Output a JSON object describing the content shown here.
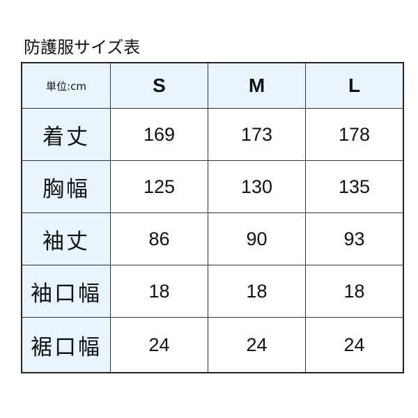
{
  "title": "防護服サイズ表",
  "table": {
    "unit_label": "単位:cm",
    "sizes": [
      "S",
      "M",
      "L"
    ],
    "rows": [
      {
        "label": "着丈",
        "values": [
          "169",
          "173",
          "178"
        ]
      },
      {
        "label": "胸幅",
        "values": [
          "125",
          "130",
          "135"
        ]
      },
      {
        "label": "袖丈",
        "values": [
          "86",
          "90",
          "93"
        ]
      },
      {
        "label": "袖口幅",
        "values": [
          "18",
          "18",
          "18"
        ]
      },
      {
        "label": "裾口幅",
        "values": [
          "24",
          "24",
          "24"
        ]
      }
    ]
  },
  "colors": {
    "header_bg": "#e9f5fd",
    "border": "#222222"
  }
}
